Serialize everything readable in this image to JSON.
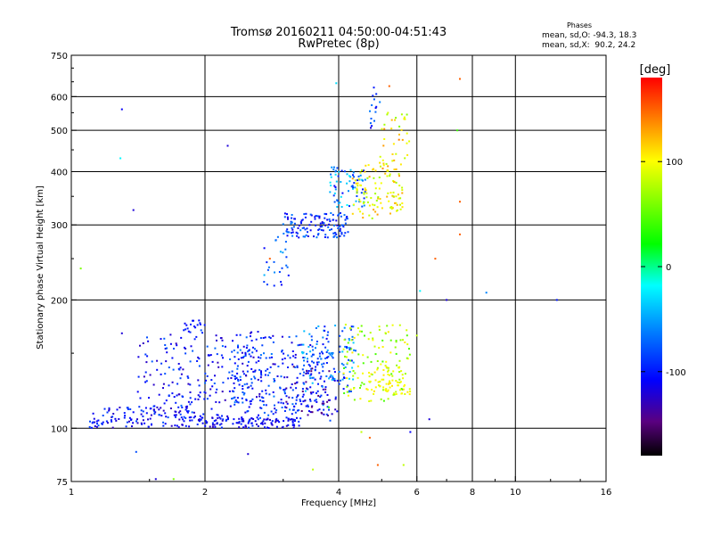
{
  "chart_data": {
    "type": "scatter",
    "title": "Tromsø 20160211 04:50:00-04:51:43",
    "subtitle": "RwPretec (8p)",
    "xlabel": "Frequency [MHz]",
    "ylabel": "Stationary phase Virtual Height [km]",
    "x_scale": "log",
    "y_scale": "log",
    "xlim": [
      1,
      16
    ],
    "ylim": [
      75,
      750
    ],
    "xticks": [
      {
        "v": 1,
        "label": "1"
      },
      {
        "v": 2,
        "label": "2"
      },
      {
        "v": 4,
        "label": "4"
      },
      {
        "v": 6,
        "label": "6"
      },
      {
        "v": 8,
        "label": "8"
      },
      {
        "v": 10,
        "label": "10"
      },
      {
        "v": 16,
        "label": "16"
      }
    ],
    "yticks": [
      {
        "v": 75,
        "label": "75"
      },
      {
        "v": 100,
        "label": "100"
      },
      {
        "v": 200,
        "label": "200"
      },
      {
        "v": 300,
        "label": "300"
      },
      {
        "v": 400,
        "label": "400"
      },
      {
        "v": 500,
        "label": "500"
      },
      {
        "v": 600,
        "label": "600"
      },
      {
        "v": 750,
        "label": "750"
      }
    ],
    "grid_x": [
      2,
      4,
      6,
      8,
      10
    ],
    "grid_y": [
      100,
      200,
      300,
      400,
      500,
      600
    ],
    "grid": true,
    "colorbar": {
      "label": "[deg]",
      "min": -180,
      "max": 180,
      "ticks": [
        {
          "v": 100,
          "label": "100"
        },
        {
          "v": 0,
          "label": "0"
        },
        {
          "v": -100,
          "label": "-100"
        }
      ]
    },
    "stats": {
      "title": "Phases",
      "line1": "mean, sd,O: -94.3, 18.3",
      "line2": "mean, sd,X:  90.2, 24.2"
    },
    "clusters": [
      {
        "f": [
          1.1,
          1.9
        ],
        "h": [
          100,
          112
        ],
        "phase": [
          -130,
          -80
        ],
        "n": 110
      },
      {
        "f": [
          1.4,
          2.9
        ],
        "h": [
          102,
          170
        ],
        "phase": [
          -130,
          -70
        ],
        "n": 260
      },
      {
        "f": [
          1.8,
          3.3
        ],
        "h": [
          100,
          106
        ],
        "phase": [
          -130,
          -90
        ],
        "n": 120
      },
      {
        "f": [
          2.3,
          3.8
        ],
        "h": [
          110,
          165
        ],
        "phase": [
          -120,
          -60
        ],
        "n": 200
      },
      {
        "f": [
          3.0,
          4.0
        ],
        "h": [
          104,
          140
        ],
        "phase": [
          -150,
          -80
        ],
        "n": 90
      },
      {
        "f": [
          3.3,
          4.4
        ],
        "h": [
          120,
          175
        ],
        "phase": [
          -110,
          -30
        ],
        "n": 110
      },
      {
        "f": [
          4.1,
          5.8
        ],
        "h": [
          115,
          175
        ],
        "phase": [
          40,
          110
        ],
        "n": 120
      },
      {
        "f": [
          4.6,
          5.8
        ],
        "h": [
          120,
          140
        ],
        "phase": [
          90,
          110
        ],
        "n": 60
      },
      {
        "f": [
          3.0,
          4.2
        ],
        "h": [
          280,
          320
        ],
        "phase": [
          -120,
          -60
        ],
        "n": 130
      },
      {
        "f": [
          3.8,
          4.6
        ],
        "h": [
          330,
          410
        ],
        "phase": [
          -110,
          -20
        ],
        "n": 70
      },
      {
        "f": [
          4.3,
          5.6
        ],
        "h": [
          310,
          420
        ],
        "phase": [
          70,
          130
        ],
        "n": 110
      },
      {
        "f": [
          4.9,
          5.8
        ],
        "h": [
          400,
          570
        ],
        "phase": [
          60,
          140
        ],
        "n": 40
      },
      {
        "f": [
          2.7,
          3.1
        ],
        "h": [
          215,
          300
        ],
        "phase": [
          -110,
          -40
        ],
        "n": 25
      },
      {
        "f": [
          4.7,
          5.0
        ],
        "h": [
          500,
          620
        ],
        "phase": [
          -120,
          -60
        ],
        "n": 14
      },
      {
        "f": [
          1.8,
          2.0
        ],
        "h": [
          170,
          180
        ],
        "phase": [
          -110,
          -90
        ],
        "n": 14
      }
    ],
    "outliers": [
      {
        "f": 1.3,
        "h": 560,
        "phase": -110
      },
      {
        "f": 1.29,
        "h": 430,
        "phase": -20
      },
      {
        "f": 1.38,
        "h": 325,
        "phase": -120
      },
      {
        "f": 1.05,
        "h": 237,
        "phase": 60
      },
      {
        "f": 2.25,
        "h": 460,
        "phase": -120
      },
      {
        "f": 3.95,
        "h": 645,
        "phase": -30
      },
      {
        "f": 4.8,
        "h": 630,
        "phase": -100
      },
      {
        "f": 5.2,
        "h": 635,
        "phase": 150
      },
      {
        "f": 7.5,
        "h": 660,
        "phase": 150
      },
      {
        "f": 7.4,
        "h": 500,
        "phase": 40
      },
      {
        "f": 7.5,
        "h": 340,
        "phase": 150
      },
      {
        "f": 7.5,
        "h": 285,
        "phase": 150
      },
      {
        "f": 6.6,
        "h": 250,
        "phase": 150
      },
      {
        "f": 6.1,
        "h": 210,
        "phase": -20
      },
      {
        "f": 7.0,
        "h": 200,
        "phase": -120
      },
      {
        "f": 8.6,
        "h": 208,
        "phase": -60
      },
      {
        "f": 12.4,
        "h": 200,
        "phase": -100
      },
      {
        "f": 2.8,
        "h": 250,
        "phase": 150
      },
      {
        "f": 1.3,
        "h": 167,
        "phase": -120
      },
      {
        "f": 1.4,
        "h": 88,
        "phase": -80
      },
      {
        "f": 2.5,
        "h": 87,
        "phase": -120
      },
      {
        "f": 3.5,
        "h": 80,
        "phase": 80
      },
      {
        "f": 4.9,
        "h": 82,
        "phase": 150
      },
      {
        "f": 4.7,
        "h": 95,
        "phase": 150
      },
      {
        "f": 4.5,
        "h": 98,
        "phase": 80
      },
      {
        "f": 5.6,
        "h": 82,
        "phase": 80
      },
      {
        "f": 5.8,
        "h": 98,
        "phase": -110
      },
      {
        "f": 1.55,
        "h": 76,
        "phase": -120
      },
      {
        "f": 1.7,
        "h": 76,
        "phase": 60
      },
      {
        "f": 3.8,
        "h": 112,
        "phase": 40
      },
      {
        "f": 6.4,
        "h": 105,
        "phase": -120
      },
      {
        "f": 6.0,
        "h": 165,
        "phase": 80
      }
    ]
  }
}
